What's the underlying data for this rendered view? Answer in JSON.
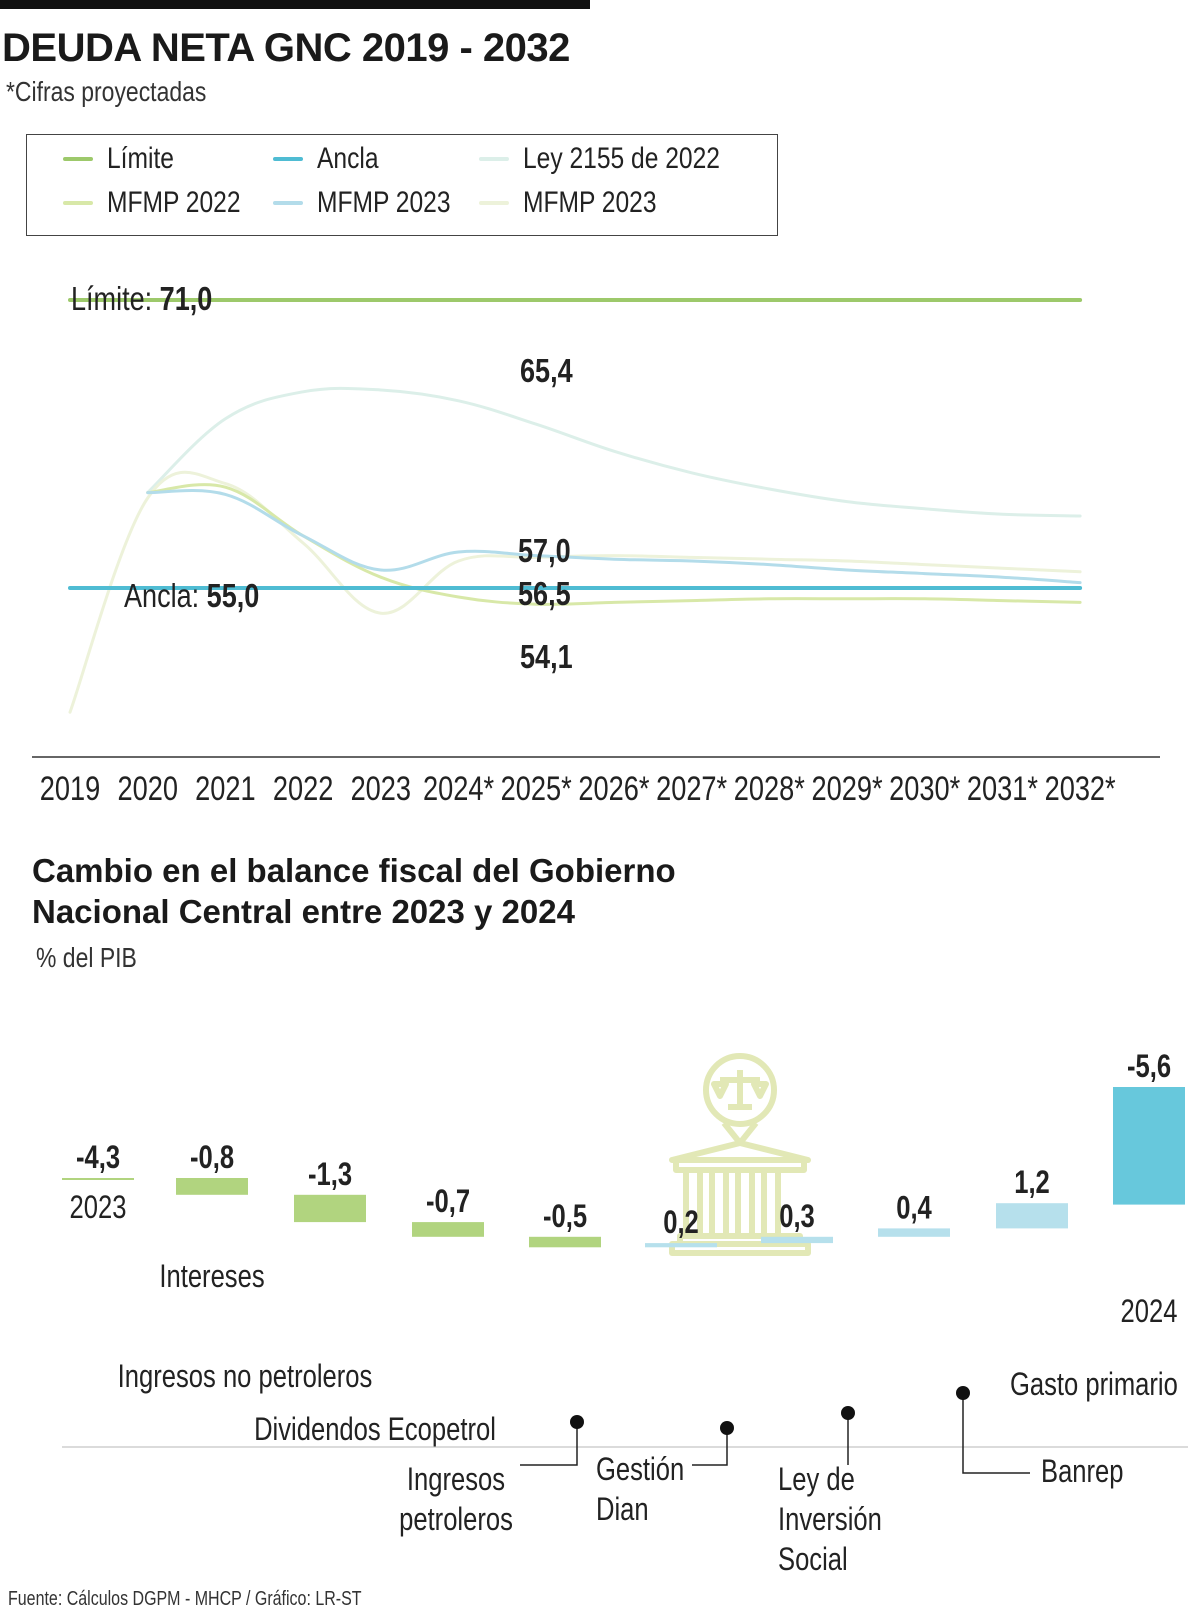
{
  "header": {
    "title": "DEUDA NETA GNC 2019 - 2032",
    "subtitle": "*Cifras proyectadas"
  },
  "legend": [
    {
      "label": "Límite",
      "color": "#9dc96b"
    },
    {
      "label": "Ancla",
      "color": "#4fbcd3"
    },
    {
      "label": "Ley 2155 de 2022",
      "color": "#dcefe9"
    },
    {
      "label": "MFMP 2022",
      "color": "#d8e8a8"
    },
    {
      "label": "MFMP 2023",
      "color": "#b3dcea"
    },
    {
      "label": "MFMP 2023",
      "color": "#edf2da"
    }
  ],
  "chart_data": [
    {
      "type": "line",
      "title": "DEUDA NETA GNC 2019 - 2032",
      "subtitle": "*Cifras proyectadas",
      "categories": [
        "2019",
        "2020",
        "2021",
        "2022",
        "2023",
        "2024*",
        "2025*",
        "2026*",
        "2027*",
        "2028*",
        "2029*",
        "2030*",
        "2031*",
        "2032*"
      ],
      "ylim": [
        48,
        73
      ],
      "series": [
        {
          "name": "Límite",
          "color": "#9dc96b",
          "values": [
            71.0,
            71.0,
            71.0,
            71.0,
            71.0,
            71.0,
            71.0,
            71.0,
            71.0,
            71.0,
            71.0,
            71.0,
            71.0,
            71.0
          ]
        },
        {
          "name": "Ancla",
          "color": "#4fbcd3",
          "values": [
            55.0,
            55.0,
            55.0,
            55.0,
            55.0,
            55.0,
            55.0,
            55.0,
            55.0,
            55.0,
            55.0,
            55.0,
            55.0,
            55.0
          ]
        },
        {
          "name": "Ley 2155 de 2022",
          "color": "#dcefe9",
          "values": [
            null,
            60.3,
            64.4,
            65.9,
            66.0,
            65.4,
            64.1,
            62.6,
            61.4,
            60.5,
            59.8,
            59.4,
            59.1,
            59.0
          ]
        },
        {
          "name": "MFMP 2022",
          "color": "#d8e8a8",
          "values": [
            null,
            60.3,
            60.6,
            57.9,
            55.6,
            54.5,
            54.1,
            54.2,
            54.3,
            54.4,
            54.4,
            54.4,
            54.3,
            54.2
          ]
        },
        {
          "name": "MFMP 2023",
          "color": "#b3dcea",
          "values": [
            null,
            60.3,
            60.2,
            57.9,
            56.0,
            57.0,
            56.8,
            56.6,
            56.5,
            56.3,
            56.0,
            55.8,
            55.6,
            55.3
          ]
        },
        {
          "name": "MFMP 2023",
          "color": "#edf2da",
          "values": [
            48.1,
            60.0,
            60.8,
            57.5,
            53.6,
            56.5,
            56.7,
            56.8,
            56.7,
            56.6,
            56.5,
            56.3,
            56.1,
            55.9
          ]
        }
      ],
      "annotations": [
        {
          "label": "Límite:",
          "value": "71,0"
        },
        {
          "label": "Ancla:",
          "value": "55,0"
        },
        {
          "label": "",
          "value": "65,4"
        },
        {
          "label": "",
          "value": "57,0"
        },
        {
          "label": "",
          "value": "56,5"
        },
        {
          "label": "",
          "value": "54,1"
        }
      ]
    },
    {
      "type": "bar",
      "title": "Cambio en el balance fiscal del Gobierno Nacional Central entre 2023 y 2024",
      "unit": "% del PIB",
      "subtype": "waterfall",
      "categories": [
        "2023",
        "Intereses",
        "Ingresos no petroleros",
        "Dividendos Ecopetrol",
        "Ingresos petroleros",
        "Gestión Dian",
        "Ley de Inversión Social",
        "Banrep",
        "Gasto primario",
        "2024"
      ],
      "values": [
        -4.3,
        -0.8,
        -1.3,
        -0.7,
        -0.5,
        0.2,
        0.3,
        0.4,
        1.2,
        -5.6
      ],
      "value_labels": [
        "-4,3",
        "-0,8",
        "-1,3",
        "-0,7",
        "-0,5",
        "0,2",
        "0,3",
        "0,4",
        "1,2",
        "-5,6"
      ],
      "colors": {
        "negative": "#b1d47f",
        "positive": "#b6e0ec",
        "total_end": "#67c8dc"
      }
    }
  ],
  "chart2_header": {
    "title_line1": "Cambio en el balance fiscal del Gobierno",
    "title_line2": "Nacional Central entre 2023 y 2024",
    "unit": "% del PIB"
  },
  "footer": {
    "source": "Fuente: Cálculos DGPM - MHCP / Gráfico: LR-ST"
  }
}
